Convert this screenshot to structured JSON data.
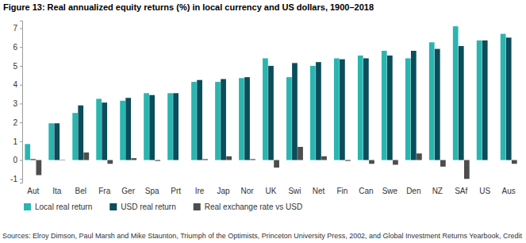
{
  "chart_data": {
    "type": "bar",
    "title": "Figure 13: Real annualized equity returns (%) in local currency and US dollars, 1900–2018",
    "source": "Sources: Elroy Dimson, Paul Marsh and Mike Staunton, Triumph of the Optimists, Princeton University Press, 2002, and Global Investment Returns Yearbook, Credit",
    "categories": [
      "Aut",
      "Ita",
      "Bel",
      "Fra",
      "Ger",
      "Spa",
      "Prt",
      "Ire",
      "Jap",
      "Nor",
      "UK",
      "Swi",
      "Net",
      "Fin",
      "Can",
      "Swe",
      "Den",
      "NZ",
      "SAf",
      "US",
      "Aus"
    ],
    "series": [
      {
        "name": "Local real return",
        "color": "#2ab5b0",
        "values": [
          0.85,
          1.95,
          2.5,
          3.25,
          3.15,
          3.55,
          3.55,
          4.15,
          4.15,
          4.35,
          5.4,
          4.4,
          5.0,
          5.4,
          5.55,
          5.8,
          5.4,
          6.25,
          7.1,
          6.35,
          6.7
        ]
      },
      {
        "name": "USD real return",
        "color": "#0b4d5a",
        "values": [
          0.05,
          1.95,
          2.9,
          3.05,
          3.3,
          3.45,
          3.55,
          4.25,
          4.3,
          4.4,
          5.0,
          5.15,
          5.2,
          5.35,
          5.4,
          5.55,
          5.8,
          5.9,
          6.05,
          6.35,
          6.5
        ]
      },
      {
        "name": "Real exchange rate vs USD",
        "color": "#4d4d4d",
        "values": [
          -0.8,
          -0.02,
          0.4,
          -0.2,
          0.1,
          -0.05,
          0.0,
          0.05,
          0.2,
          0.05,
          -0.4,
          0.7,
          0.2,
          -0.05,
          -0.2,
          -0.25,
          0.35,
          -0.35,
          -1.0,
          0.0,
          -0.2
        ]
      }
    ],
    "ylim": [
      -1.2,
      7.4
    ],
    "yticks": [
      -1,
      0,
      1,
      2,
      3,
      4,
      5,
      6,
      7
    ],
    "grid": false,
    "legend": "bottom"
  }
}
